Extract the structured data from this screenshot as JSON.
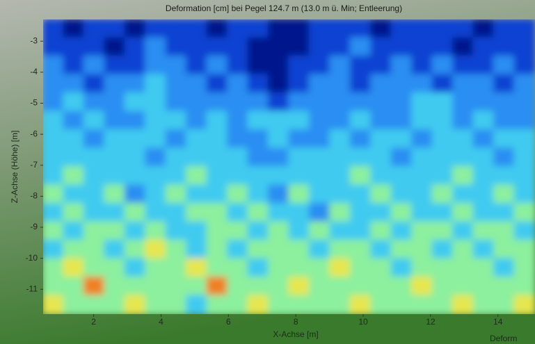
{
  "chart_data": {
    "type": "heatmap",
    "title": "Deformation [cm] bei Pegel 124.7 m (13.0 m ü. Min; Entleerung)",
    "x_label": "X-Achse [m]",
    "y_label": "Z-Achse (Höhe) [m]",
    "colorbar_label": "Deform",
    "xlim": [
      0.5,
      15.1
    ],
    "ylim": [
      -11.8,
      -2.3
    ],
    "xticks": [
      2,
      4,
      6,
      8,
      10,
      12,
      14
    ],
    "yticks": [
      -3,
      -4,
      -5,
      -6,
      -7,
      -8,
      -9,
      -10,
      -11
    ],
    "colors": [
      "#00128c",
      "#0b43d2",
      "#2b8ef2",
      "#3fcaf0",
      "#8cf09e",
      "#e6e650",
      "#f08024"
    ],
    "z": [
      [
        1,
        0,
        1,
        1,
        0,
        1,
        1,
        1,
        0,
        1,
        1,
        0,
        0,
        1,
        1,
        1,
        0,
        1,
        1,
        1,
        1,
        0,
        1,
        1
      ],
      [
        1,
        1,
        1,
        0,
        1,
        2,
        1,
        1,
        1,
        1,
        0,
        0,
        0,
        1,
        1,
        2,
        1,
        1,
        1,
        1,
        0,
        1,
        1,
        1
      ],
      [
        2,
        1,
        2,
        1,
        1,
        2,
        2,
        1,
        2,
        1,
        0,
        0,
        1,
        1,
        2,
        1,
        1,
        2,
        1,
        2,
        1,
        1,
        2,
        1
      ],
      [
        2,
        2,
        1,
        2,
        2,
        3,
        2,
        2,
        1,
        2,
        1,
        0,
        1,
        2,
        2,
        1,
        2,
        2,
        2,
        1,
        2,
        2,
        1,
        2
      ],
      [
        2,
        3,
        2,
        2,
        3,
        3,
        2,
        2,
        2,
        2,
        2,
        1,
        2,
        2,
        2,
        2,
        2,
        2,
        3,
        3,
        2,
        2,
        2,
        2
      ],
      [
        3,
        2,
        3,
        2,
        2,
        3,
        3,
        2,
        3,
        2,
        3,
        3,
        3,
        2,
        2,
        3,
        2,
        2,
        3,
        3,
        2,
        3,
        2,
        2
      ],
      [
        3,
        3,
        2,
        3,
        3,
        3,
        2,
        3,
        3,
        2,
        2,
        3,
        2,
        2,
        3,
        2,
        3,
        3,
        2,
        3,
        3,
        2,
        3,
        3
      ],
      [
        3,
        3,
        3,
        3,
        3,
        2,
        3,
        3,
        3,
        3,
        2,
        2,
        3,
        3,
        3,
        3,
        3,
        2,
        3,
        3,
        3,
        3,
        2,
        3
      ],
      [
        3,
        4,
        3,
        3,
        3,
        3,
        3,
        4,
        3,
        3,
        3,
        3,
        3,
        3,
        3,
        4,
        3,
        3,
        3,
        3,
        4,
        3,
        3,
        3
      ],
      [
        4,
        3,
        3,
        4,
        2,
        3,
        4,
        3,
        3,
        4,
        3,
        2,
        4,
        3,
        3,
        3,
        4,
        3,
        3,
        4,
        3,
        3,
        4,
        3
      ],
      [
        3,
        4,
        3,
        3,
        4,
        3,
        3,
        4,
        4,
        3,
        4,
        3,
        3,
        2,
        4,
        3,
        3,
        4,
        3,
        3,
        4,
        3,
        3,
        4
      ],
      [
        4,
        3,
        4,
        4,
        3,
        4,
        3,
        3,
        4,
        4,
        3,
        4,
        3,
        4,
        3,
        3,
        4,
        3,
        4,
        4,
        3,
        4,
        4,
        3
      ],
      [
        3,
        4,
        4,
        3,
        4,
        5,
        4,
        3,
        4,
        3,
        4,
        4,
        4,
        3,
        4,
        4,
        3,
        4,
        4,
        3,
        4,
        3,
        4,
        4
      ],
      [
        4,
        5,
        4,
        4,
        3,
        4,
        4,
        5,
        4,
        4,
        3,
        4,
        4,
        4,
        5,
        4,
        4,
        3,
        4,
        4,
        4,
        4,
        3,
        4
      ],
      [
        4,
        4,
        6,
        4,
        4,
        4,
        4,
        4,
        6,
        4,
        4,
        4,
        5,
        4,
        4,
        4,
        4,
        4,
        5,
        4,
        4,
        4,
        4,
        4
      ],
      [
        5,
        4,
        4,
        4,
        5,
        4,
        4,
        3,
        4,
        4,
        5,
        4,
        4,
        4,
        4,
        5,
        4,
        4,
        4,
        4,
        5,
        4,
        4,
        5
      ]
    ]
  }
}
